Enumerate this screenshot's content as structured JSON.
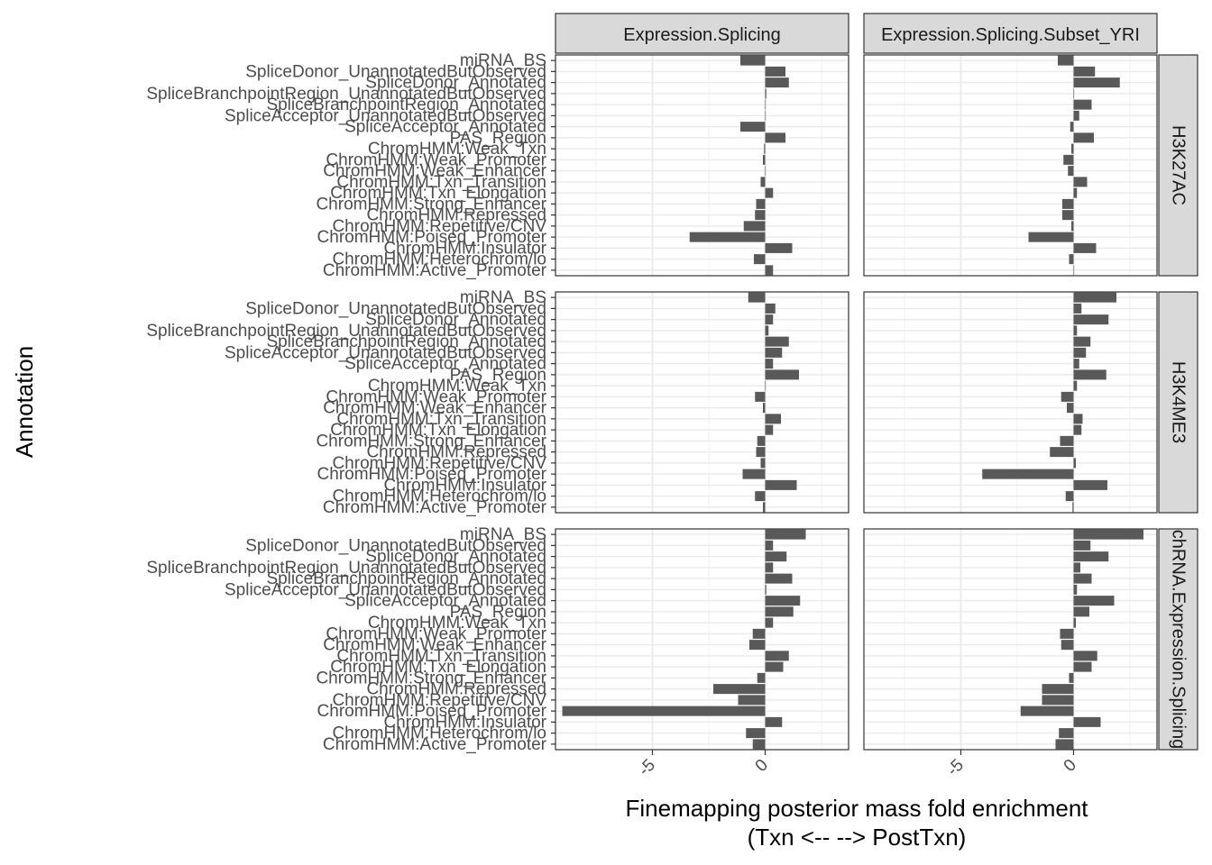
{
  "chart_data": {
    "type": "bar",
    "orientation": "horizontal",
    "facet_columns": [
      "Expression.Splicing",
      "Expression.Splicing.Subset_YRI"
    ],
    "facet_rows": [
      "H3K27AC",
      "H3K4ME3",
      "chRNA.Expression.Splicing"
    ],
    "categories": [
      "miRNA_BS",
      "SpliceDonor_UnannotatedButObserved",
      "SpliceDonor_Annotated",
      "SpliceBranchpointRegion_UnannotatedButObserved",
      "SpliceBranchpointRegion_Annotated",
      "SpliceAcceptor_UnannotatedButObserved",
      "SpliceAcceptor_Annotated",
      "PAS_Region",
      "ChromHMM:Weak_Txn",
      "ChromHMM:Weak_Promoter",
      "ChromHMM:Weak_Enhancer",
      "ChromHMM:Txn_Transition",
      "ChromHMM:Txn_Elongation",
      "ChromHMM:Strong_Enhancer",
      "ChromHMM:Repressed",
      "ChromHMM:Repetitive/CNV",
      "ChromHMM:Poised_Promoter",
      "ChromHMM:Insulator",
      "ChromHMM:Heterochrom/lo",
      "ChromHMM:Active_Promoter"
    ],
    "xlabel_line1": "Finemapping posterior mass fold enrichment",
    "xlabel_line2": "(Txn <-- --> PostTxn)",
    "ylabel": "Annotation",
    "xlim": [
      -9.3,
      3.7
    ],
    "x_ticks": [
      -5,
      0
    ],
    "x_tick_labels": [
      "-5",
      "0"
    ],
    "grid": true,
    "bar_color": "#595959",
    "panels": [
      {
        "row": 0,
        "col": 0,
        "values": [
          -1.1,
          0.9,
          1.05,
          0.05,
          0.0,
          0.0,
          -1.1,
          0.9,
          -0.05,
          -0.1,
          0.0,
          -0.2,
          0.35,
          -0.4,
          -0.45,
          -0.95,
          -3.35,
          1.2,
          -0.5,
          0.35
        ]
      },
      {
        "row": 0,
        "col": 1,
        "values": [
          -0.7,
          0.95,
          2.05,
          0.0,
          0.8,
          0.25,
          -0.15,
          0.9,
          -0.1,
          -0.45,
          -0.25,
          0.6,
          0.15,
          -0.5,
          -0.5,
          -0.1,
          -2.0,
          1.0,
          -0.2,
          0.0
        ]
      },
      {
        "row": 1,
        "col": 0,
        "values": [
          -0.75,
          0.45,
          0.35,
          0.15,
          1.05,
          0.75,
          0.35,
          1.5,
          0.0,
          -0.45,
          -0.1,
          0.7,
          0.35,
          -0.35,
          -0.4,
          -0.2,
          -1.0,
          1.4,
          -0.45,
          -0.1
        ]
      },
      {
        "row": 1,
        "col": 1,
        "values": [
          1.9,
          0.35,
          1.55,
          0.15,
          0.75,
          0.55,
          0.25,
          1.45,
          0.15,
          -0.55,
          -0.3,
          0.4,
          0.35,
          -0.6,
          -1.05,
          0.1,
          -4.05,
          1.5,
          -0.35,
          -0.05
        ]
      },
      {
        "row": 2,
        "col": 0,
        "values": [
          1.8,
          0.35,
          0.95,
          0.35,
          1.2,
          0.05,
          1.55,
          1.25,
          0.35,
          -0.55,
          -0.7,
          1.05,
          0.8,
          -0.35,
          -2.3,
          -1.2,
          -9.0,
          0.75,
          -0.85,
          -0.55
        ]
      },
      {
        "row": 2,
        "col": 1,
        "values": [
          3.1,
          0.75,
          1.55,
          0.3,
          0.8,
          0.15,
          1.8,
          0.7,
          0.1,
          -0.6,
          -0.55,
          1.05,
          0.8,
          -0.2,
          -1.4,
          -1.4,
          -2.35,
          1.2,
          -0.65,
          -0.8
        ]
      }
    ]
  }
}
